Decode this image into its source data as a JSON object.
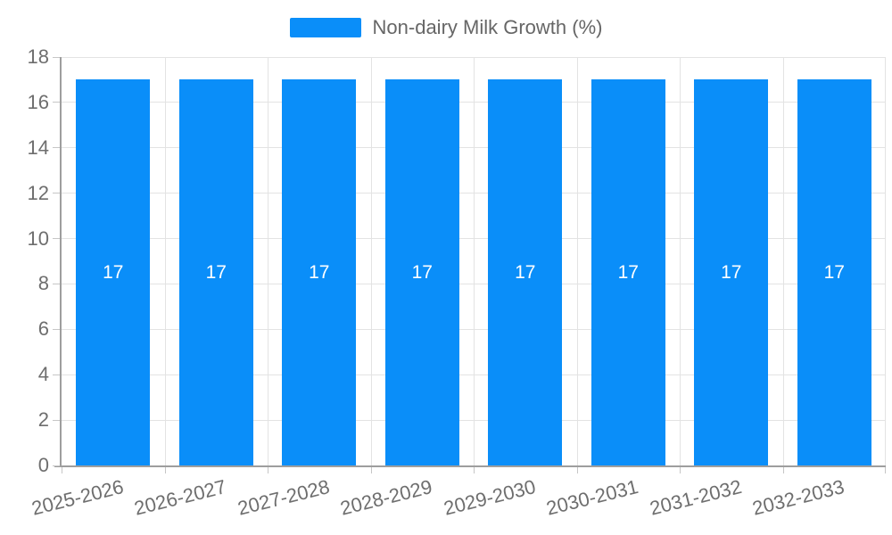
{
  "chart_data": {
    "type": "bar",
    "title": "Non-dairy Milk Growth (%)",
    "legend": {
      "position": "top",
      "label": "Non-dairy Milk Growth (%)"
    },
    "categories": [
      "2025-2026",
      "2026-2027",
      "2027-2028",
      "2028-2029",
      "2029-2030",
      "2030-2031",
      "2031-2032",
      "2032-2033"
    ],
    "values": [
      17,
      17,
      17,
      17,
      17,
      17,
      17,
      17
    ],
    "bar_value_labels": [
      "17",
      "17",
      "17",
      "17",
      "17",
      "17",
      "17",
      "17"
    ],
    "xlabel": "",
    "ylabel": "",
    "ylim": [
      0,
      18
    ],
    "y_ticks": [
      0,
      2,
      4,
      6,
      8,
      10,
      12,
      14,
      16,
      18
    ],
    "grid": true,
    "colors": {
      "bar": "#0a8ef9",
      "bar_label": "#ffffff",
      "grid": "#e3e3e3",
      "axis": "#9e9e9e",
      "tick_mark": "#c6c6c6",
      "tick_label": "#6e6e6e",
      "legend_text": "#666666",
      "background": "#ffffff"
    }
  }
}
